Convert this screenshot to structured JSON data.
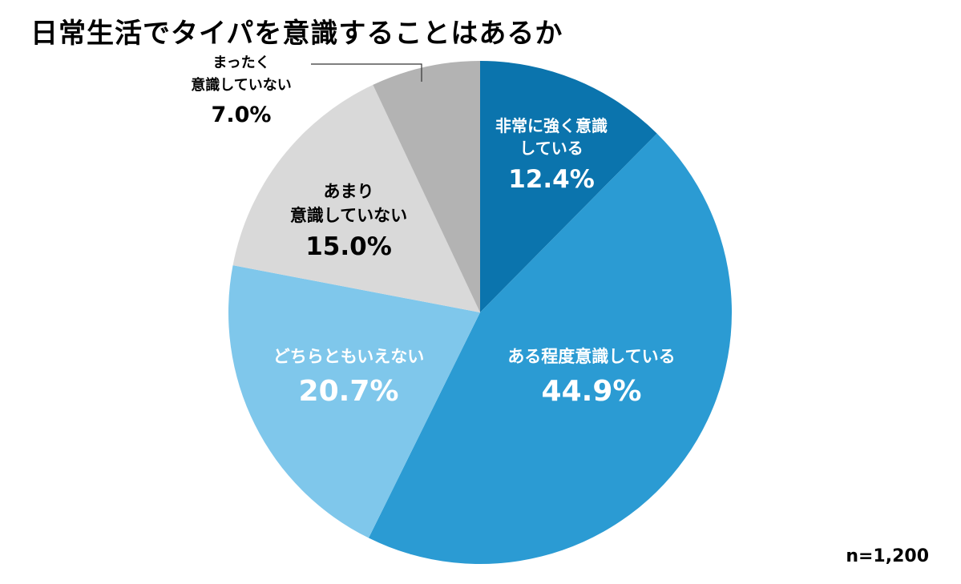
{
  "chart_data": {
    "type": "pie",
    "title": "日常生活でタイパを意識することはあるか",
    "note": "n=1,200",
    "slices": [
      {
        "lines": [
          "非常に強く意識",
          "している"
        ],
        "value": 12.4,
        "value_label": "12.4%",
        "color": "#0b74ad",
        "text_color": "#ffffff"
      },
      {
        "lines": [
          "ある程度意識している"
        ],
        "value": 44.9,
        "value_label": "44.9%",
        "color": "#2b9bd3",
        "text_color": "#ffffff"
      },
      {
        "lines": [
          "どちらともいえない"
        ],
        "value": 20.7,
        "value_label": "20.7%",
        "color": "#7fc7eb",
        "text_color": "#ffffff"
      },
      {
        "lines": [
          "あまり",
          "意識していない"
        ],
        "value": 15.0,
        "value_label": "15.0%",
        "color": "#d9d9d9",
        "text_color": "#000000"
      },
      {
        "lines": [
          "まったく",
          "意識していない"
        ],
        "value": 7.0,
        "value_label": "7.0%",
        "color": "#b3b3b3",
        "text_color": "#000000"
      }
    ]
  }
}
